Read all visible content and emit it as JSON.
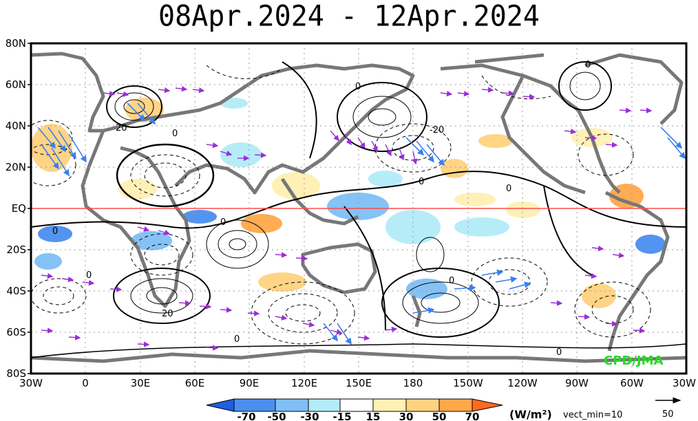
{
  "title": "08Apr.2024 - 12Apr.2024",
  "map": {
    "lat_labels": [
      "80N",
      "60N",
      "40N",
      "20N",
      "EQ",
      "20S",
      "40S",
      "60S",
      "80S"
    ],
    "lon_labels": [
      "30W",
      "0",
      "30E",
      "60E",
      "90E",
      "120E",
      "150E",
      "180",
      "150W",
      "120W",
      "90W",
      "60W",
      "30W"
    ],
    "contour_labels": [
      "0",
      "20",
      "-20"
    ],
    "credit": "CPD/JMA",
    "equator_color": "#ff4a4a",
    "credit_color": "#22dd22"
  },
  "colorbar": {
    "labels": [
      "-70",
      "-50",
      "-30",
      "-15",
      "15",
      "30",
      "50",
      "70"
    ],
    "colors": [
      "#1e5fe0",
      "#4a8ff0",
      "#7fbff6",
      "#b3ecf8",
      "#ffffff",
      "#fff0b3",
      "#ffd27f",
      "#ffa84a",
      "#ff6a1e"
    ],
    "units": "(W/m²)",
    "vect_min": "vect_min=10",
    "ref_vector": "50"
  }
}
